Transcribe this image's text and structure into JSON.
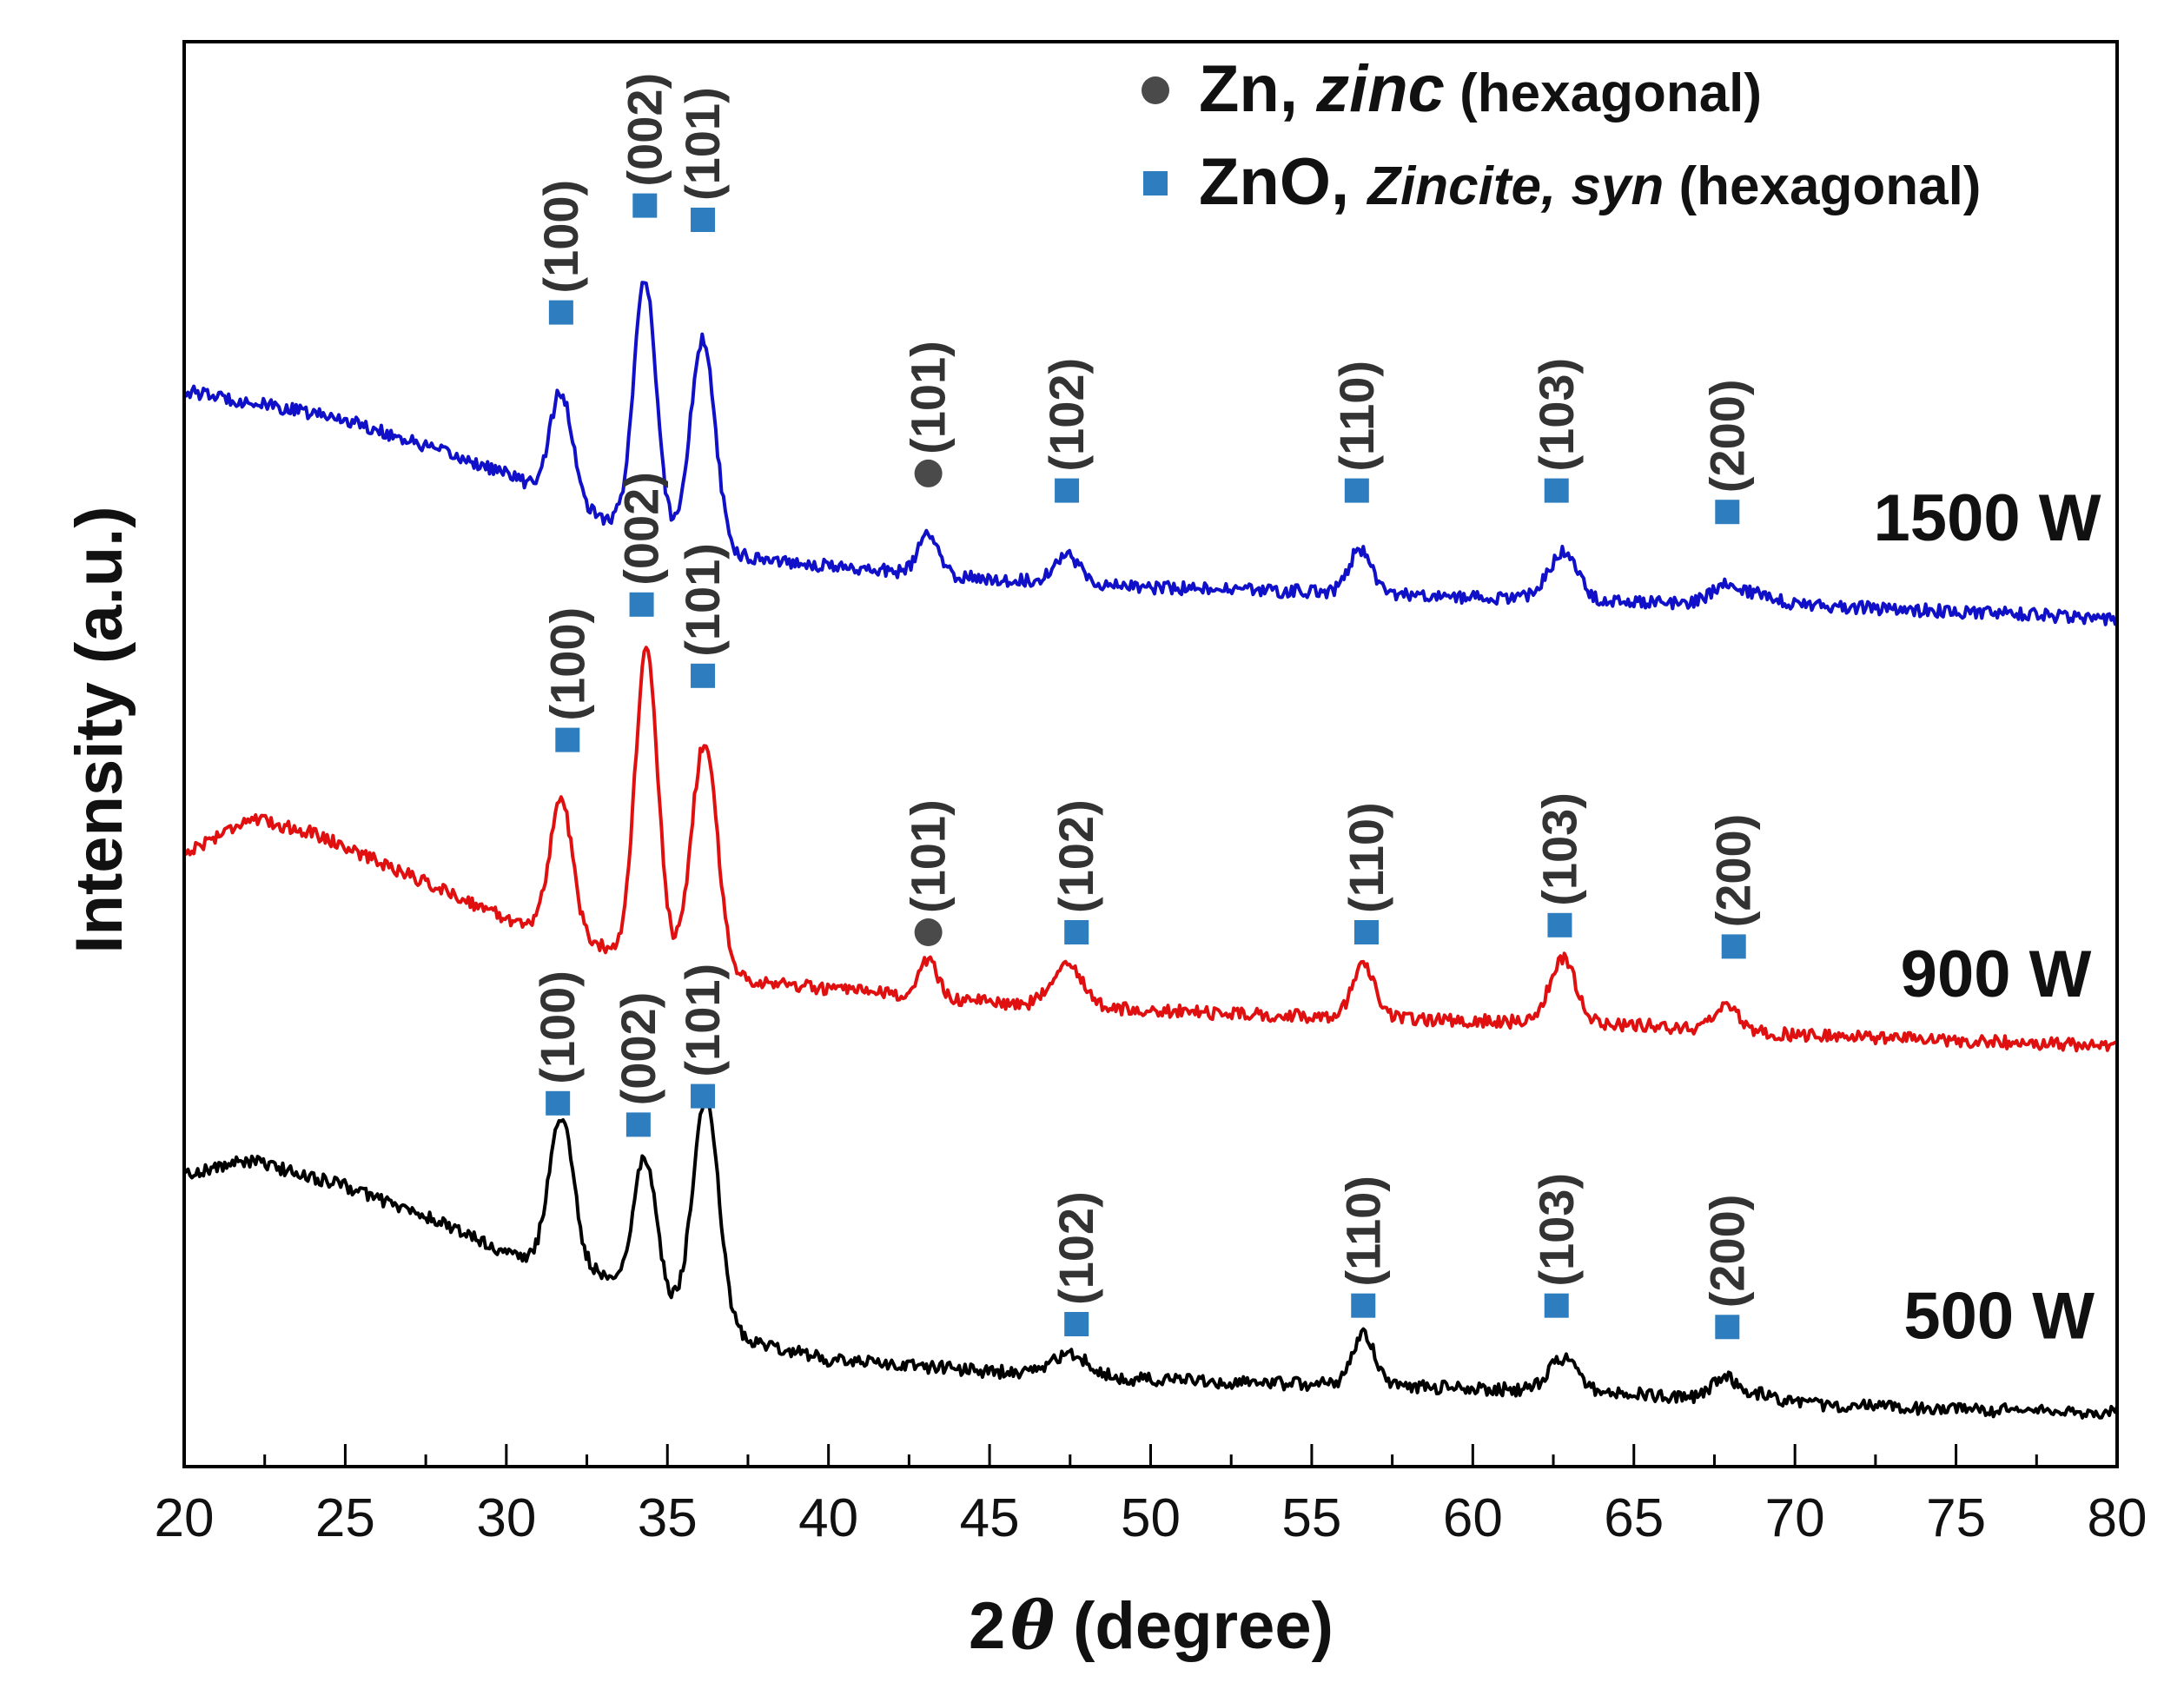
{
  "chart_data": {
    "type": "line",
    "xlabel_prefix": "2",
    "xlabel_symbol": "θ",
    "xlabel_suffix": " (degree)",
    "ylabel": "Intensity (a.u.)",
    "xlim": [
      20,
      80
    ],
    "ylim": [
      0,
      100
    ],
    "x_ticks": [
      20,
      25,
      30,
      35,
      40,
      45,
      50,
      55,
      60,
      65,
      70,
      75,
      80
    ],
    "y_tick_labels": false,
    "legend": {
      "placement": "top-right",
      "entries": [
        {
          "marker": "circle",
          "color": "#4a4a4a",
          "name": "Zn, ",
          "name_italic": "zinc",
          "phase": " (hexagonal)"
        },
        {
          "marker": "square",
          "color": "#2e7ebf",
          "name": "ZnO, ",
          "name_italic": "Zincite, syn",
          "phase": " (hexagonal)"
        }
      ]
    },
    "series": [
      {
        "name": "1500 W",
        "color": "#1010c8",
        "baseline": [
          [
            20,
            75.5
          ],
          [
            25,
            73.5
          ],
          [
            30,
            69.7
          ],
          [
            33,
            66.5
          ],
          [
            37,
            64
          ],
          [
            40,
            63.2
          ],
          [
            45,
            62.3
          ],
          [
            50,
            61.7
          ],
          [
            55,
            61.4
          ],
          [
            60,
            61
          ],
          [
            65,
            60.7
          ],
          [
            70,
            60.5
          ],
          [
            75,
            60
          ],
          [
            80,
            59.5
          ]
        ],
        "peaks": [
          {
            "x": 31.7,
            "height": 7.5,
            "width": 0.35
          },
          {
            "x": 34.3,
            "height": 17.5,
            "width": 0.35
          },
          {
            "x": 36.1,
            "height": 14.5,
            "width": 0.38
          },
          {
            "x": 43.1,
            "height": 2.8,
            "width": 0.3
          },
          {
            "x": 47.4,
            "height": 2.0,
            "width": 0.4
          },
          {
            "x": 56.5,
            "height": 3.1,
            "width": 0.35
          },
          {
            "x": 62.8,
            "height": 3.3,
            "width": 0.45
          },
          {
            "x": 67.9,
            "height": 1.4,
            "width": 0.45
          },
          {
            "x": 69.0,
            "height": 0.7,
            "width": 0.4
          }
        ],
        "noise": 0.45
      },
      {
        "name": "900 W",
        "color": "#e01010",
        "baseline": [
          [
            20,
            43
          ],
          [
            22,
            45.5
          ],
          [
            24,
            44.5
          ],
          [
            27,
            41.5
          ],
          [
            30,
            38.5
          ],
          [
            33,
            36.5
          ],
          [
            37,
            34.3
          ],
          [
            40,
            33.5
          ],
          [
            45,
            32.6
          ],
          [
            50,
            32
          ],
          [
            55,
            31.6
          ],
          [
            60,
            31.3
          ],
          [
            65,
            31
          ],
          [
            70,
            30.3
          ],
          [
            75,
            29.9
          ],
          [
            80,
            29.5
          ]
        ],
        "peaks": [
          {
            "x": 31.7,
            "height": 9.5,
            "width": 0.35
          },
          {
            "x": 34.35,
            "height": 21.5,
            "width": 0.35
          },
          {
            "x": 36.15,
            "height": 16,
            "width": 0.4
          },
          {
            "x": 43.1,
            "height": 2.5,
            "width": 0.3
          },
          {
            "x": 47.4,
            "height": 3.2,
            "width": 0.45
          },
          {
            "x": 56.6,
            "height": 3.6,
            "width": 0.35
          },
          {
            "x": 62.8,
            "height": 4.6,
            "width": 0.4
          },
          {
            "x": 67.9,
            "height": 1.8,
            "width": 0.35
          }
        ],
        "noise": 0.45
      },
      {
        "name": "500 W",
        "color": "#000000",
        "baseline": [
          [
            20,
            20.5
          ],
          [
            22,
            21.5
          ],
          [
            25,
            19.7
          ],
          [
            28,
            17.1
          ],
          [
            30.5,
            14.5
          ],
          [
            33,
            13.5
          ],
          [
            37,
            9.2
          ],
          [
            40,
            7.5
          ],
          [
            45,
            6.7
          ],
          [
            50,
            6.1
          ],
          [
            55,
            5.8
          ],
          [
            60,
            5.5
          ],
          [
            65,
            5.1
          ],
          [
            70,
            4.4
          ],
          [
            75,
            4
          ],
          [
            80,
            3.8
          ]
        ],
        "peaks": [
          {
            "x": 31.7,
            "height": 10.5,
            "width": 0.38
          },
          {
            "x": 34.3,
            "height": 9.7,
            "width": 0.35
          },
          {
            "x": 36.2,
            "height": 15.8,
            "width": 0.4
          },
          {
            "x": 47.5,
            "height": 1.5,
            "width": 0.55
          },
          {
            "x": 56.6,
            "height": 3.6,
            "width": 0.35
          },
          {
            "x": 62.8,
            "height": 2.3,
            "width": 0.45
          },
          {
            "x": 67.8,
            "height": 1.7,
            "width": 0.35
          },
          {
            "x": 69.0,
            "height": 0.6,
            "width": 0.4
          }
        ],
        "noise": 0.45
      }
    ],
    "peak_annotations": [
      {
        "series": "1500 W",
        "x": 31.7,
        "y": 81,
        "label": "(100)",
        "marker": "square"
      },
      {
        "series": "1500 W",
        "x": 34.3,
        "y": 88.5,
        "label": "(002)",
        "marker": "square"
      },
      {
        "series": "1500 W",
        "x": 36.1,
        "y": 87.5,
        "label": "(101)",
        "marker": "square"
      },
      {
        "series": "1500 W",
        "x": 43.1,
        "y": 69.7,
        "label": "(101)",
        "marker": "circle"
      },
      {
        "series": "1500 W",
        "x": 47.4,
        "y": 68.5,
        "label": "(102)",
        "marker": "square"
      },
      {
        "series": "1500 W",
        "x": 56.4,
        "y": 68.5,
        "label": "(110)",
        "marker": "square"
      },
      {
        "series": "1500 W",
        "x": 62.6,
        "y": 68.5,
        "label": "(103)",
        "marker": "square"
      },
      {
        "series": "1500 W",
        "x": 67.9,
        "y": 67,
        "label": "(200)",
        "marker": "square"
      },
      {
        "series": "900 W",
        "x": 31.9,
        "y": 51,
        "label": "(100)",
        "marker": "square"
      },
      {
        "series": "900 W",
        "x": 34.2,
        "y": 60.5,
        "label": "(002)",
        "marker": "square"
      },
      {
        "series": "900 W",
        "x": 36.1,
        "y": 55.5,
        "label": "(101)",
        "marker": "square"
      },
      {
        "series": "900 W",
        "x": 43.1,
        "y": 37.5,
        "label": "(101)",
        "marker": "circle"
      },
      {
        "series": "900 W",
        "x": 47.7,
        "y": 37.5,
        "label": "(102)",
        "marker": "square"
      },
      {
        "series": "900 W",
        "x": 56.7,
        "y": 37.5,
        "label": "(110)",
        "marker": "square"
      },
      {
        "series": "900 W",
        "x": 62.7,
        "y": 38,
        "label": "(103)",
        "marker": "square"
      },
      {
        "series": "900 W",
        "x": 68.1,
        "y": 36.5,
        "label": "(200)",
        "marker": "square"
      },
      {
        "series": "500 W",
        "x": 31.6,
        "y": 25.5,
        "label": "(100)",
        "marker": "square"
      },
      {
        "series": "500 W",
        "x": 34.1,
        "y": 24,
        "label": "(002)",
        "marker": "square"
      },
      {
        "series": "500 W",
        "x": 36.1,
        "y": 26,
        "label": "(101)",
        "marker": "square"
      },
      {
        "series": "500 W",
        "x": 47.7,
        "y": 10,
        "label": "(102)",
        "marker": "square"
      },
      {
        "series": "500 W",
        "x": 56.6,
        "y": 11.3,
        "label": "(110)",
        "marker": "square"
      },
      {
        "series": "500 W",
        "x": 62.6,
        "y": 11.3,
        "label": "(103)",
        "marker": "square"
      },
      {
        "series": "500 W",
        "x": 67.9,
        "y": 9.8,
        "label": "(200)",
        "marker": "square"
      }
    ],
    "series_labels": [
      {
        "text": "1500 W",
        "x": 79.5,
        "y": 65
      },
      {
        "text": "900 W",
        "x": 79.2,
        "y": 33
      },
      {
        "text": "500 W",
        "x": 79.3,
        "y": 9
      }
    ],
    "grid": false
  }
}
